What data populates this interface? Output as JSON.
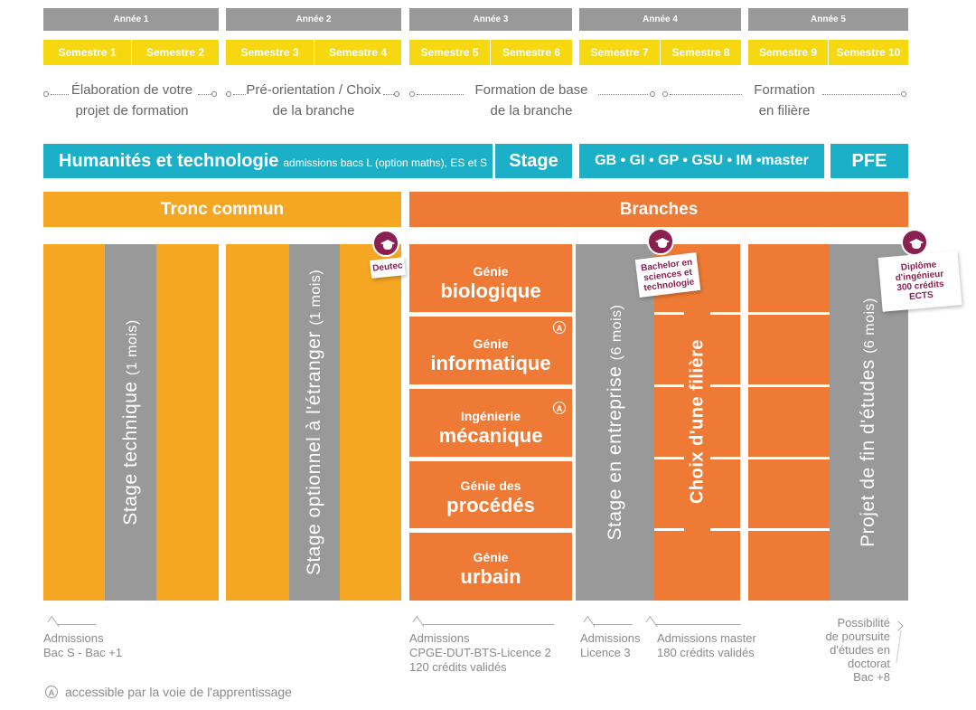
{
  "years": [
    "Année 1",
    "Année 2",
    "Année 3",
    "Année 4",
    "Année 5"
  ],
  "semesters": [
    "Semestre 1",
    "Semestre 2",
    "Semestre 3",
    "Semestre 4",
    "Semestre 5",
    "Semestre 6",
    "Semestre 7",
    "Semestre 8",
    "Semestre 9",
    "Semestre 10"
  ],
  "phases": {
    "p1": [
      "Élaboration de votre",
      "projet de formation"
    ],
    "p2": [
      "Pré-orientation / Choix",
      "de la branche"
    ],
    "p3": [
      "Formation de base",
      "de la branche"
    ],
    "p4": [
      "Formation",
      "en filière"
    ]
  },
  "bars": {
    "humanites_title": "Humanités et technologie",
    "humanites_sub": "admissions bacs L (option maths), ES et S",
    "stage": "Stage",
    "branches_list": "GB • GI • GP • GSU • IM •master",
    "pfe": "PFE"
  },
  "headers": {
    "tronc": "Tronc commun",
    "branches": "Branches"
  },
  "columns": {
    "stage_technique": "Stage technique",
    "stage_technique_dur": "(1 mois)",
    "stage_etranger": "Stage optionnel à l'étranger",
    "stage_etranger_dur": "(1 mois)",
    "stage_entreprise": "Stage en entreprise",
    "stage_entreprise_dur": "(6 mois)",
    "choix_filiere": "Choix d'une filière",
    "projet": "Projet de fin d'études",
    "projet_dur": "(6 mois)"
  },
  "genies": [
    {
      "l1": "Génie",
      "l2": "biologique",
      "apprentissage": false
    },
    {
      "l1": "Génie",
      "l2": "informatique",
      "apprentissage": true
    },
    {
      "l1": "Ingénierie",
      "l2": "mécanique",
      "apprentissage": true
    },
    {
      "l1": "Génie des",
      "l2": "procédés",
      "apprentissage": false
    },
    {
      "l1": "Génie",
      "l2": "urbain",
      "apprentissage": false
    }
  ],
  "apprentissage_mark": "A",
  "diplomas": {
    "deutec": "Deutec",
    "bachelor": [
      "Bachelor en",
      "sciences et",
      "technologie"
    ],
    "ingenieur": [
      "Diplôme",
      "d'ingénieur",
      "300 crédits",
      "ECTS"
    ]
  },
  "admissions": {
    "a1": [
      "Admissions",
      "Bac S - Bac +1"
    ],
    "a2": [
      "Admissions",
      "CPGE-DUT-BTS-Licence 2",
      "120 crédits validés"
    ],
    "a3": [
      "Admissions",
      "Licence 3"
    ],
    "a4": [
      "Admissions master",
      "180 crédits validés"
    ],
    "a5": [
      "Possibilité",
      "de poursuite",
      "d'études en",
      "doctorat",
      "Bac +8"
    ]
  },
  "legend": "accessible par la voie de l'apprentissage",
  "colors": {
    "grey": "#999999",
    "yellow": "#f5d80f",
    "teal": "#1bb0c8",
    "tronc_orange": "#f5a623",
    "branch_orange": "#ee7a35",
    "burgundy": "#8a1f52"
  }
}
